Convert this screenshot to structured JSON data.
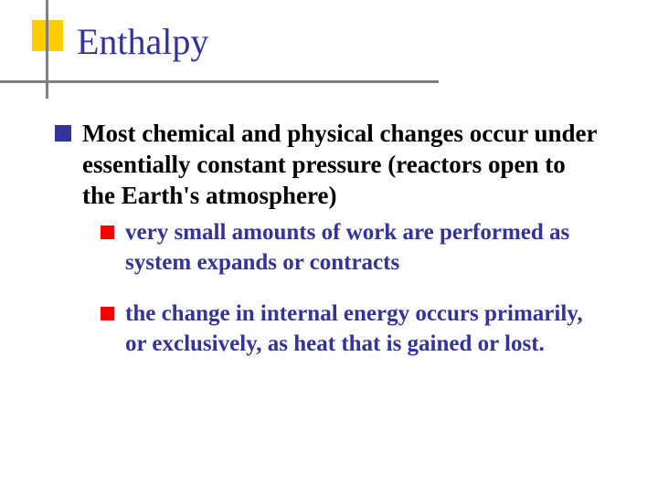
{
  "slide": {
    "title": "Enthalpy",
    "title_color": "#333399",
    "title_fontsize": 40,
    "accent_square_color": "#ffcc00",
    "line_color": "#808080",
    "background_color": "#ffffff",
    "bullets": {
      "level1": {
        "color": "#333399",
        "text_color": "#000000",
        "fontsize": 27,
        "items": [
          "Most chemical and physical changes occur under essentially constant pressure (reactors open to the Earth's atmosphere)"
        ]
      },
      "level2": {
        "color": "#ff0000",
        "text_color": "#333399",
        "fontsize": 25,
        "items": [
          "very small amounts of work are performed as system expands or contracts",
          "the change in internal energy occurs primarily, or exclusively, as heat that is gained or lost."
        ]
      }
    }
  }
}
